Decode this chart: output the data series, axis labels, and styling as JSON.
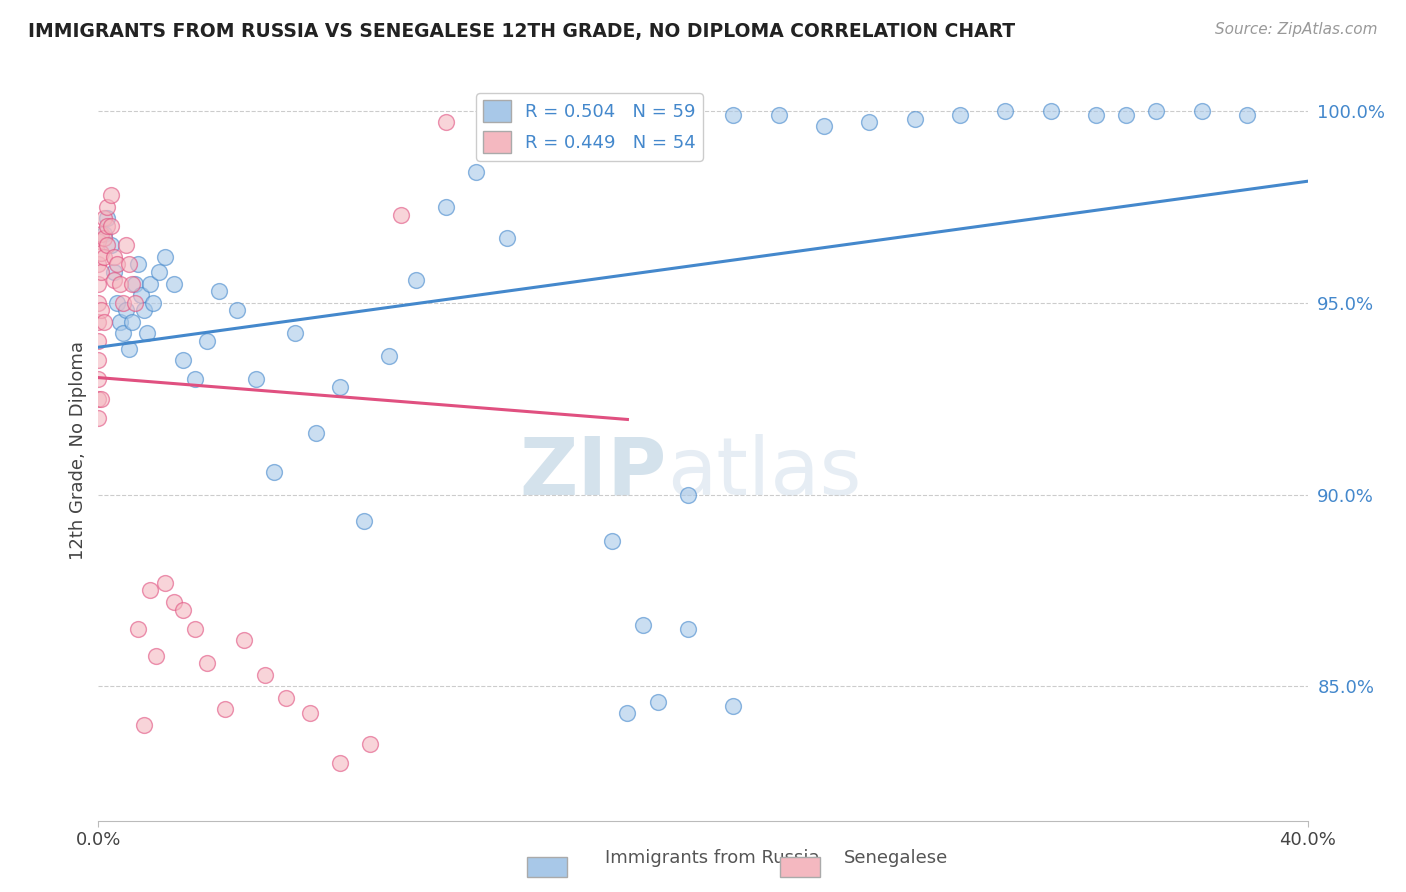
{
  "title": "IMMIGRANTS FROM RUSSIA VS SENEGALESE 12TH GRADE, NO DIPLOMA CORRELATION CHART",
  "source_text": "Source: ZipAtlas.com",
  "xlabel_bottom": "Immigrants from Russia",
  "xlabel_bottom2": "Senegalese",
  "ylabel": "12th Grade, No Diploma",
  "xmin": 0.0,
  "xmax": 0.4,
  "ymin": 0.815,
  "ymax": 1.008,
  "ytick_labels": [
    "85.0%",
    "90.0%",
    "95.0%",
    "100.0%"
  ],
  "ytick_values": [
    0.85,
    0.9,
    0.95,
    1.0
  ],
  "xtick_labels": [
    "0.0%",
    "40.0%"
  ],
  "xtick_values": [
    0.0,
    0.4
  ],
  "legend_r_blue": "R = 0.504",
  "legend_n_blue": "N = 59",
  "legend_r_pink": "R = 0.449",
  "legend_n_pink": "N = 54",
  "blue_color": "#a8c8e8",
  "pink_color": "#f4b8c0",
  "blue_line_color": "#4488cc",
  "pink_line_color": "#e05080",
  "watermark_zip": "ZIP",
  "watermark_atlas": "atlas",
  "blue_scatter_x": [
    0.002,
    0.003,
    0.004,
    0.005,
    0.006,
    0.007,
    0.008,
    0.009,
    0.01,
    0.011,
    0.012,
    0.013,
    0.014,
    0.015,
    0.016,
    0.017,
    0.018,
    0.02,
    0.022,
    0.025,
    0.028,
    0.032,
    0.036,
    0.04,
    0.046,
    0.052,
    0.058,
    0.065,
    0.072,
    0.08,
    0.088,
    0.096,
    0.105,
    0.115,
    0.125,
    0.135,
    0.145,
    0.155,
    0.165,
    0.175,
    0.185,
    0.195,
    0.21,
    0.225,
    0.24,
    0.255,
    0.27,
    0.285,
    0.3,
    0.315,
    0.33,
    0.35,
    0.365,
    0.38,
    0.17,
    0.18,
    0.195,
    0.21,
    0.34
  ],
  "blue_scatter_y": [
    0.968,
    0.972,
    0.965,
    0.958,
    0.95,
    0.945,
    0.942,
    0.948,
    0.938,
    0.945,
    0.955,
    0.96,
    0.952,
    0.948,
    0.942,
    0.955,
    0.95,
    0.958,
    0.962,
    0.955,
    0.935,
    0.93,
    0.94,
    0.953,
    0.948,
    0.93,
    0.906,
    0.942,
    0.916,
    0.928,
    0.893,
    0.936,
    0.956,
    0.975,
    0.984,
    0.967,
    0.992,
    0.996,
    0.996,
    0.843,
    0.846,
    0.9,
    0.999,
    0.999,
    0.996,
    0.997,
    0.998,
    0.999,
    1.0,
    1.0,
    0.999,
    1.0,
    1.0,
    0.999,
    0.888,
    0.866,
    0.865,
    0.845,
    0.999
  ],
  "pink_scatter_x": [
    0.0,
    0.0,
    0.0,
    0.0,
    0.0,
    0.0,
    0.0,
    0.0,
    0.001,
    0.001,
    0.001,
    0.001,
    0.002,
    0.002,
    0.002,
    0.003,
    0.003,
    0.003,
    0.004,
    0.004,
    0.005,
    0.005,
    0.006,
    0.007,
    0.008,
    0.009,
    0.01,
    0.011,
    0.012,
    0.013,
    0.015,
    0.017,
    0.019,
    0.022,
    0.025,
    0.028,
    0.032,
    0.036,
    0.042,
    0.048,
    0.055,
    0.062,
    0.07,
    0.08,
    0.09,
    0.1,
    0.115,
    0.13,
    0.15,
    0.17,
    0.0,
    0.0,
    0.001,
    0.002
  ],
  "pink_scatter_y": [
    0.966,
    0.96,
    0.955,
    0.95,
    0.945,
    0.94,
    0.935,
    0.93,
    0.968,
    0.963,
    0.958,
    0.948,
    0.972,
    0.967,
    0.962,
    0.975,
    0.97,
    0.965,
    0.978,
    0.97,
    0.962,
    0.956,
    0.96,
    0.955,
    0.95,
    0.965,
    0.96,
    0.955,
    0.95,
    0.865,
    0.84,
    0.875,
    0.858,
    0.877,
    0.872,
    0.87,
    0.865,
    0.856,
    0.844,
    0.862,
    0.853,
    0.847,
    0.843,
    0.83,
    0.835,
    0.973,
    0.997,
    0.997,
    0.997,
    0.997,
    0.92,
    0.925,
    0.925,
    0.945
  ],
  "pink_line_xmin": 0.0,
  "pink_line_xmax": 0.175
}
